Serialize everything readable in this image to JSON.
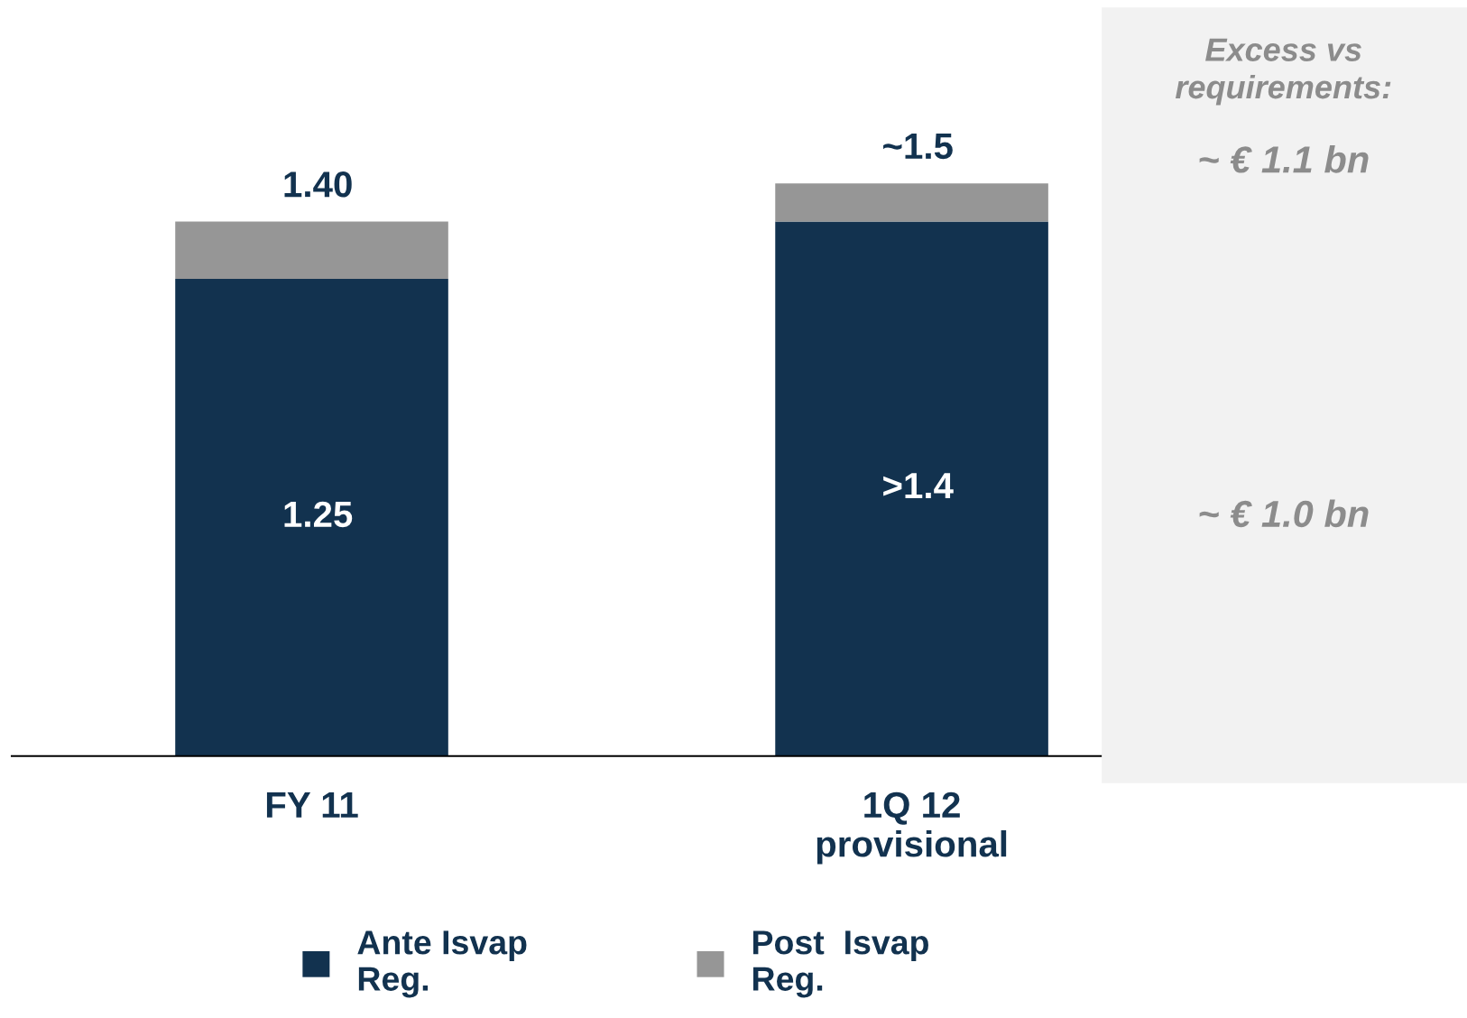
{
  "chart_data": {
    "type": "bar",
    "stacked": true,
    "categories": [
      "FY 11",
      "1Q 12\nprovisional"
    ],
    "series": [
      {
        "name": "Ante Isvap\nReg.",
        "color": "#12324f",
        "values": [
          1.25,
          1.4
        ],
        "value_labels": [
          "1.25",
          ">1.4"
        ]
      },
      {
        "name": "Post  Isvap\nReg.",
        "color": "#969696",
        "values": [
          0.15,
          0.1
        ],
        "value_labels": [
          null,
          null
        ]
      }
    ],
    "totals": [
      "1.40",
      "~1.5"
    ],
    "annotations": [
      "Excess vs\nrequirements:",
      "~ € 1.1 bn",
      "~ € 1.0 bn"
    ],
    "legend": "bottom",
    "grid": false
  }
}
